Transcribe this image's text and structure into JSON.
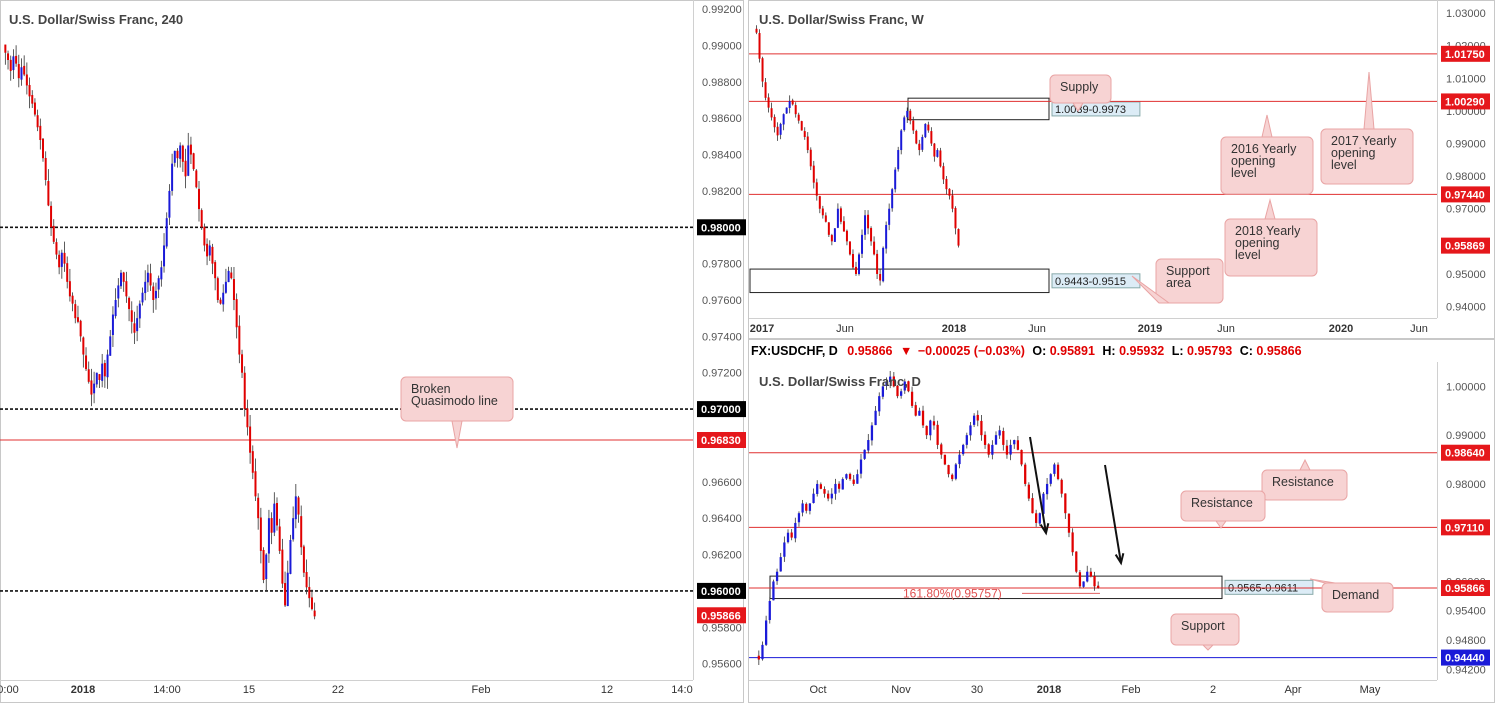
{
  "colors": {
    "bull": "#1a1ad8",
    "bear": "#e00000",
    "level_line": "#e03030",
    "support_line": "#1a1ad8",
    "callout_bg": "#f7d3d3",
    "callout_border": "#e9a4a4",
    "zone_label_bg": "#dcecf6",
    "price_tag_red": "#e5171b",
    "price_tag_black": "#000000",
    "price_tag_blue": "#1a1ad8"
  },
  "daily_info_bar": {
    "symbol": "FX:USDCHF, D",
    "close": "0.95866",
    "change": "−0.00025 (−0.03%)",
    "o_label": "O:",
    "o": "0.95891",
    "h_label": "H:",
    "h": "0.95932",
    "l_label": "L:",
    "l": "0.95793",
    "c_label": "C:",
    "c": "0.95866"
  },
  "chart_data": [
    {
      "type": "candlestick",
      "title": "U.S. Dollar/Swiss Franc, 240",
      "ylim": [
        0.9551,
        0.9925
      ],
      "y_ticks": [
        "0.99200",
        "0.99000",
        "0.98800",
        "0.98600",
        "0.98400",
        "0.98200",
        "0.97800",
        "0.97600",
        "0.97400",
        "0.97200",
        "0.96600",
        "0.96400",
        "0.96200",
        "0.95800",
        "0.95600"
      ],
      "x_ticks": [
        "0:00",
        "2018",
        "14:00",
        "15",
        "22",
        "Feb",
        "12",
        "14:0"
      ],
      "levels": [
        {
          "value": 0.98,
          "label": "0.98000",
          "style": "dashed",
          "tag": "black"
        },
        {
          "value": 0.97,
          "label": "0.97000",
          "style": "dashed",
          "tag": "black"
        },
        {
          "value": 0.9683,
          "label": "0.96830",
          "style": "solid",
          "tag": "red"
        },
        {
          "value": 0.96,
          "label": "0.96000",
          "style": "dashed",
          "tag": "black"
        },
        {
          "value": 0.95866,
          "label": "0.95866",
          "style": "none",
          "tag": "red"
        }
      ],
      "annotations": [
        {
          "text": "Broken Quasimodo line",
          "anchor_value": 0.9683
        }
      ],
      "series_close": [
        0.9896,
        0.9892,
        0.9886,
        0.9894,
        0.989,
        0.9882,
        0.9888,
        0.9884,
        0.9878,
        0.9872,
        0.9868,
        0.9862,
        0.9855,
        0.9848,
        0.9838,
        0.9826,
        0.9812,
        0.98,
        0.9792,
        0.9785,
        0.9778,
        0.9786,
        0.978,
        0.977,
        0.9762,
        0.9758,
        0.975,
        0.9748,
        0.974,
        0.973,
        0.9722,
        0.9715,
        0.9708,
        0.9714,
        0.972,
        0.9716,
        0.9725,
        0.9718,
        0.973,
        0.974,
        0.9752,
        0.976,
        0.9768,
        0.9775,
        0.977,
        0.9762,
        0.9755,
        0.9748,
        0.9742,
        0.975,
        0.9758,
        0.9764,
        0.977,
        0.9775,
        0.9768,
        0.976,
        0.9765,
        0.9772,
        0.9778,
        0.979,
        0.9805,
        0.982,
        0.9835,
        0.9842,
        0.9838,
        0.9845,
        0.9836,
        0.9828,
        0.9845,
        0.984,
        0.9832,
        0.9822,
        0.981,
        0.98,
        0.979,
        0.9784,
        0.979,
        0.978,
        0.9772,
        0.976,
        0.9758,
        0.9764,
        0.977,
        0.9776,
        0.9772,
        0.976,
        0.9745,
        0.973,
        0.972,
        0.97,
        0.969,
        0.9676,
        0.9665,
        0.9652,
        0.964,
        0.9622,
        0.9606,
        0.962,
        0.964,
        0.9632,
        0.9648,
        0.9636,
        0.9622,
        0.9604,
        0.9592,
        0.961,
        0.9628,
        0.964,
        0.9652,
        0.9642,
        0.9624,
        0.961,
        0.9602,
        0.9596,
        0.959,
        0.9586
      ],
      "note": "Values estimated from the price axis."
    },
    {
      "type": "candlestick",
      "title": "U.S. Dollar/Swiss Franc, W",
      "ylim": [
        0.9365,
        1.034
      ],
      "y_ticks": [
        "1.03000",
        "1.02000",
        "1.01000",
        "1.00000",
        "0.99000",
        "0.98000",
        "0.97000",
        "0.95000",
        "0.94000"
      ],
      "x_ticks": [
        "2017",
        "Jun",
        "2018",
        "Jun",
        "2019",
        "Jun",
        "2020",
        "Jun"
      ],
      "levels": [
        {
          "value": 1.0175,
          "label": "1.01750",
          "tag": "red"
        },
        {
          "value": 1.0029,
          "label": "1.00290",
          "tag": "red"
        },
        {
          "value": 0.9744,
          "label": "0.97440",
          "tag": "red"
        },
        {
          "value": 0.95869,
          "label": "0.95869",
          "tag": "red"
        }
      ],
      "zones": [
        {
          "label": "1.0039-0.9973",
          "top": 1.0039,
          "bottom": 0.9973
        },
        {
          "label": "0.9443-0.9515",
          "top": 0.9515,
          "bottom": 0.9443
        }
      ],
      "annotations": [
        "Supply",
        "2016 Yearly opening level",
        "2017 Yearly opening level",
        "2018 Yearly opening level",
        "Support area"
      ],
      "series_close": [
        1.024,
        1.016,
        1.009,
        1.004,
        1.001,
        0.998,
        0.995,
        0.9925,
        0.996,
        0.999,
        1.001,
        1.003,
        1.002,
        0.999,
        0.997,
        0.994,
        0.992,
        0.988,
        0.983,
        0.978,
        0.974,
        0.97,
        0.968,
        0.966,
        0.962,
        0.96,
        0.964,
        0.97,
        0.966,
        0.963,
        0.96,
        0.956,
        0.952,
        0.95,
        0.956,
        0.962,
        0.968,
        0.964,
        0.96,
        0.956,
        0.95,
        0.948,
        0.958,
        0.965,
        0.97,
        0.976,
        0.982,
        0.988,
        0.994,
        0.998,
        1.0,
        0.997,
        0.994,
        0.99,
        0.988,
        0.992,
        0.996,
        0.994,
        0.99,
        0.986,
        0.988,
        0.983,
        0.979,
        0.976,
        0.974,
        0.97,
        0.964,
        0.9587
      ]
    },
    {
      "type": "candlestick",
      "title": "U.S. Dollar/Swiss Franc, D",
      "ylim": [
        0.9398,
        1.005
      ],
      "y_ticks": [
        "1.00000",
        "0.99000",
        "0.98000",
        "0.96000",
        "0.95400",
        "0.94800",
        "0.94200"
      ],
      "x_ticks": [
        "Oct",
        "Nov",
        "30",
        "2018",
        "Feb",
        "2",
        "Apr",
        "May"
      ],
      "levels": [
        {
          "value": 0.9864,
          "label": "0.98640",
          "tag": "red"
        },
        {
          "value": 0.9711,
          "label": "0.97110",
          "tag": "red"
        },
        {
          "value": 0.95866,
          "label": "0.95866",
          "tag": "red"
        },
        {
          "value": 0.9444,
          "label": "0.94440",
          "tag": "blue"
        }
      ],
      "zones": [
        {
          "label": "0.9565-0.9611",
          "top": 0.9611,
          "bottom": 0.9565
        }
      ],
      "fib": {
        "label": "161.80%(0.95757)",
        "value": 0.95757
      },
      "annotations": [
        "Resistance",
        "Resistance",
        "Demand",
        "Support"
      ],
      "series_close": [
        0.944,
        0.947,
        0.952,
        0.956,
        0.96,
        0.962,
        0.965,
        0.968,
        0.97,
        0.969,
        0.972,
        0.974,
        0.976,
        0.9745,
        0.976,
        0.978,
        0.98,
        0.979,
        0.978,
        0.977,
        0.978,
        0.98,
        0.979,
        0.981,
        0.982,
        0.981,
        0.98,
        0.982,
        0.985,
        0.987,
        0.989,
        0.992,
        0.995,
        0.998,
        1.0,
        1.001,
        1.002,
        1.0,
        0.998,
        0.999,
        1.001,
        0.999,
        0.996,
        0.994,
        0.995,
        0.992,
        0.99,
        0.993,
        0.992,
        0.988,
        0.986,
        0.984,
        0.982,
        0.981,
        0.984,
        0.986,
        0.988,
        0.99,
        0.992,
        0.994,
        0.993,
        0.99,
        0.988,
        0.986,
        0.988,
        0.99,
        0.991,
        0.988,
        0.986,
        0.988,
        0.989,
        0.987,
        0.984,
        0.98,
        0.977,
        0.974,
        0.972,
        0.974,
        0.978,
        0.98,
        0.982,
        0.984,
        0.981,
        0.978,
        0.974,
        0.97,
        0.966,
        0.962,
        0.959,
        0.96,
        0.962,
        0.961,
        0.959,
        0.9587
      ]
    }
  ]
}
